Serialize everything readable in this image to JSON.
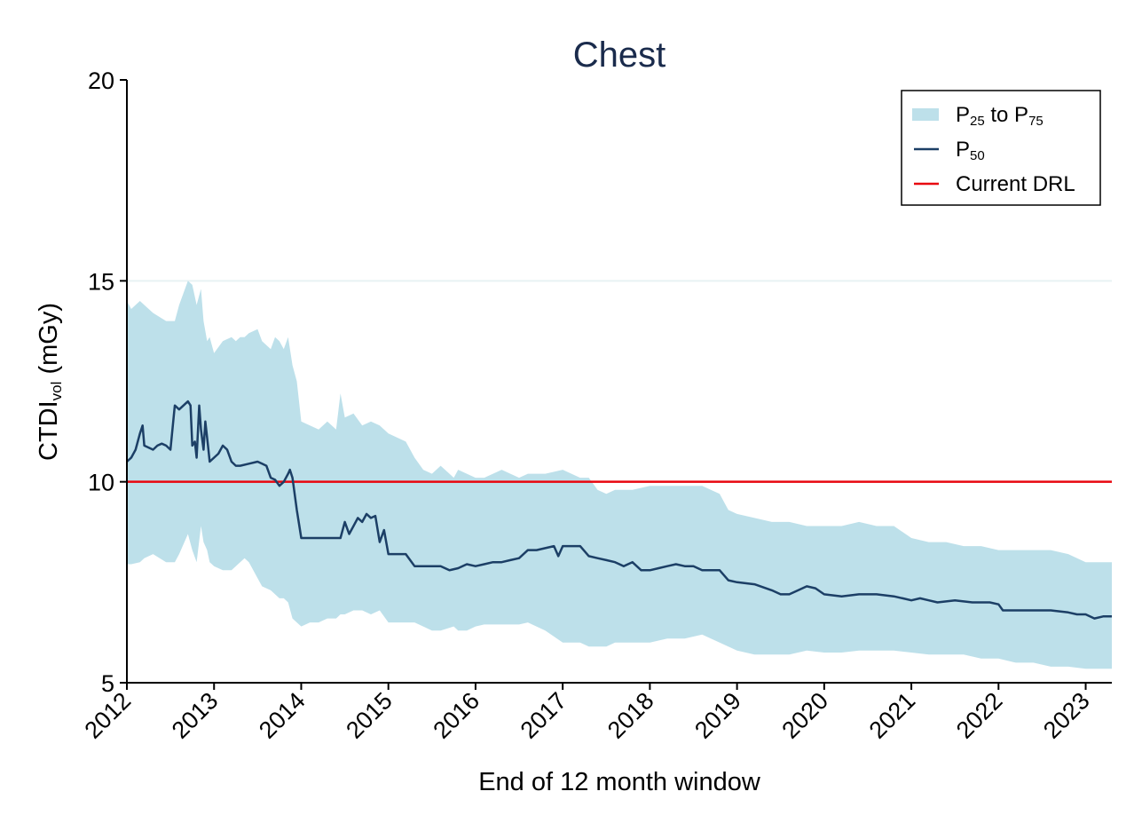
{
  "chart_data": {
    "type": "line",
    "title": "Chest",
    "xlabel": "End of 12 month window",
    "ylabel": {
      "main": "CTDI",
      "sub": "vol",
      "unit": " (mGy)"
    },
    "xlim": [
      2012.0,
      2023.3
    ],
    "ylim": [
      5,
      20
    ],
    "yticks": [
      5,
      10,
      15,
      20
    ],
    "xticks": [
      2012,
      2013,
      2014,
      2015,
      2016,
      2017,
      2018,
      2019,
      2020,
      2021,
      2022,
      2023
    ],
    "xtick_labels": [
      "2012",
      "2013",
      "2014",
      "2015",
      "2016",
      "2017",
      "2018",
      "2019",
      "2020",
      "2021",
      "2022",
      "2023"
    ],
    "grid": {
      "y_at": [
        15
      ]
    },
    "legend_position": "top-right",
    "legend": [
      {
        "key": "band",
        "parts": [
          [
            "P",
            ""
          ],
          [
            "25",
            "sub"
          ],
          [
            " to P",
            ""
          ],
          [
            "75",
            "sub"
          ]
        ]
      },
      {
        "key": "median",
        "parts": [
          [
            "P",
            ""
          ],
          [
            "50",
            "sub"
          ]
        ]
      },
      {
        "key": "drl",
        "parts": [
          [
            "Current DRL",
            ""
          ]
        ]
      }
    ],
    "reference_line": {
      "name": "Current DRL",
      "y": 10.0
    },
    "band": {
      "name": "P25 to P75",
      "x": [
        2012.0,
        2012.05,
        2012.15,
        2012.2,
        2012.3,
        2012.45,
        2012.55,
        2012.6,
        2012.7,
        2012.75,
        2012.8,
        2012.85,
        2012.88,
        2012.92,
        2012.95,
        2013.0,
        2013.1,
        2013.2,
        2013.25,
        2013.3,
        2013.35,
        2013.4,
        2013.5,
        2013.55,
        2013.65,
        2013.7,
        2013.75,
        2013.8,
        2013.85,
        2013.9,
        2013.95,
        2014.0,
        2014.1,
        2014.2,
        2014.3,
        2014.4,
        2014.45,
        2014.5,
        2014.6,
        2014.7,
        2014.8,
        2014.9,
        2015.0,
        2015.2,
        2015.3,
        2015.4,
        2015.5,
        2015.6,
        2015.75,
        2015.8,
        2015.9,
        2016.0,
        2016.1,
        2016.2,
        2016.3,
        2016.4,
        2016.5,
        2016.6,
        2016.8,
        2017.0,
        2017.2,
        2017.3,
        2017.4,
        2017.5,
        2017.6,
        2017.8,
        2018.0,
        2018.2,
        2018.4,
        2018.6,
        2018.8,
        2018.9,
        2019.0,
        2019.2,
        2019.4,
        2019.6,
        2019.8,
        2020.0,
        2020.2,
        2020.4,
        2020.6,
        2020.8,
        2021.0,
        2021.2,
        2021.4,
        2021.6,
        2021.8,
        2022.0,
        2022.2,
        2022.4,
        2022.6,
        2022.8,
        2023.0,
        2023.2,
        2023.3
      ],
      "upper": [
        14.5,
        14.3,
        14.5,
        14.4,
        14.2,
        14.0,
        14.0,
        14.4,
        15.0,
        14.9,
        14.4,
        14.8,
        14.0,
        13.5,
        13.6,
        13.2,
        13.5,
        13.6,
        13.5,
        13.6,
        13.6,
        13.7,
        13.8,
        13.5,
        13.3,
        13.6,
        13.5,
        13.3,
        13.6,
        12.9,
        12.5,
        11.5,
        11.4,
        11.3,
        11.5,
        11.3,
        12.2,
        11.6,
        11.7,
        11.4,
        11.5,
        11.4,
        11.2,
        11.0,
        10.6,
        10.3,
        10.2,
        10.4,
        10.1,
        10.3,
        10.2,
        10.1,
        10.1,
        10.2,
        10.3,
        10.2,
        10.1,
        10.2,
        10.2,
        10.3,
        10.1,
        10.1,
        9.8,
        9.7,
        9.8,
        9.8,
        9.9,
        9.9,
        9.9,
        9.9,
        9.7,
        9.3,
        9.2,
        9.1,
        9.0,
        9.0,
        8.9,
        8.9,
        8.9,
        9.0,
        8.9,
        8.9,
        8.6,
        8.5,
        8.5,
        8.4,
        8.4,
        8.3,
        8.3,
        8.3,
        8.3,
        8.2,
        8.0,
        8.0,
        8.0
      ],
      "lower": [
        7.95,
        7.95,
        8.0,
        8.1,
        8.2,
        8.0,
        8.0,
        8.2,
        8.7,
        8.3,
        8.0,
        8.9,
        8.5,
        8.3,
        8.0,
        7.9,
        7.8,
        7.8,
        7.9,
        8.0,
        8.1,
        8.0,
        7.6,
        7.4,
        7.3,
        7.2,
        7.1,
        7.1,
        7.0,
        6.6,
        6.5,
        6.4,
        6.5,
        6.5,
        6.6,
        6.6,
        6.7,
        6.7,
        6.8,
        6.8,
        6.7,
        6.8,
        6.5,
        6.5,
        6.5,
        6.4,
        6.3,
        6.3,
        6.4,
        6.3,
        6.3,
        6.4,
        6.45,
        6.45,
        6.45,
        6.45,
        6.45,
        6.5,
        6.3,
        6.0,
        6.0,
        5.9,
        5.9,
        5.9,
        6.0,
        6.0,
        6.0,
        6.1,
        6.1,
        6.2,
        6.0,
        5.9,
        5.8,
        5.7,
        5.7,
        5.7,
        5.8,
        5.75,
        5.75,
        5.8,
        5.8,
        5.8,
        5.75,
        5.7,
        5.7,
        5.7,
        5.6,
        5.6,
        5.5,
        5.5,
        5.4,
        5.4,
        5.35,
        5.35,
        5.35
      ]
    },
    "series": [
      {
        "name": "P50",
        "x": [
          2012.0,
          2012.05,
          2012.1,
          2012.15,
          2012.18,
          2012.2,
          2012.3,
          2012.35,
          2012.4,
          2012.45,
          2012.5,
          2012.55,
          2012.6,
          2012.7,
          2012.73,
          2012.75,
          2012.78,
          2012.8,
          2012.83,
          2012.85,
          2012.88,
          2012.9,
          2012.93,
          2012.95,
          2013.0,
          2013.05,
          2013.1,
          2013.15,
          2013.2,
          2013.25,
          2013.3,
          2013.4,
          2013.5,
          2013.55,
          2013.6,
          2013.65,
          2013.7,
          2013.75,
          2013.8,
          2013.85,
          2013.87,
          2013.9,
          2013.95,
          2014.0,
          2014.1,
          2014.2,
          2014.3,
          2014.4,
          2014.45,
          2014.5,
          2014.55,
          2014.6,
          2014.65,
          2014.7,
          2014.75,
          2014.8,
          2014.85,
          2014.9,
          2014.95,
          2015.0,
          2015.1,
          2015.2,
          2015.3,
          2015.4,
          2015.5,
          2015.6,
          2015.7,
          2015.8,
          2015.9,
          2016.0,
          2016.1,
          2016.2,
          2016.3,
          2016.4,
          2016.5,
          2016.6,
          2016.7,
          2016.8,
          2016.9,
          2016.95,
          2017.0,
          2017.1,
          2017.2,
          2017.3,
          2017.4,
          2017.5,
          2017.6,
          2017.7,
          2017.8,
          2017.9,
          2018.0,
          2018.1,
          2018.2,
          2018.3,
          2018.4,
          2018.5,
          2018.6,
          2018.7,
          2018.8,
          2018.9,
          2019.0,
          2019.2,
          2019.4,
          2019.5,
          2019.6,
          2019.7,
          2019.8,
          2019.9,
          2020.0,
          2020.2,
          2020.4,
          2020.6,
          2020.8,
          2020.9,
          2021.0,
          2021.1,
          2021.2,
          2021.3,
          2021.5,
          2021.7,
          2021.9,
          2022.0,
          2022.05,
          2022.2,
          2022.4,
          2022.6,
          2022.8,
          2022.9,
          2023.0,
          2023.1,
          2023.2,
          2023.3
        ],
        "values": [
          10.5,
          10.6,
          10.8,
          11.2,
          11.4,
          10.9,
          10.8,
          10.9,
          10.95,
          10.9,
          10.8,
          11.9,
          11.8,
          12.0,
          11.9,
          10.9,
          11.0,
          10.6,
          11.9,
          11.3,
          10.8,
          11.5,
          10.9,
          10.5,
          10.6,
          10.7,
          10.9,
          10.8,
          10.5,
          10.4,
          10.4,
          10.45,
          10.5,
          10.45,
          10.4,
          10.1,
          10.05,
          9.9,
          10.0,
          10.2,
          10.3,
          10.1,
          9.3,
          8.6,
          8.6,
          8.6,
          8.6,
          8.6,
          8.6,
          9.0,
          8.7,
          8.9,
          9.1,
          9.0,
          9.2,
          9.1,
          9.15,
          8.5,
          8.8,
          8.2,
          8.2,
          8.2,
          7.9,
          7.9,
          7.9,
          7.9,
          7.8,
          7.85,
          7.95,
          7.9,
          7.95,
          8.0,
          8.0,
          8.05,
          8.1,
          8.3,
          8.3,
          8.35,
          8.4,
          8.15,
          8.4,
          8.4,
          8.4,
          8.15,
          8.1,
          8.05,
          8.0,
          7.9,
          8.0,
          7.8,
          7.8,
          7.85,
          7.9,
          7.95,
          7.9,
          7.9,
          7.8,
          7.8,
          7.8,
          7.55,
          7.5,
          7.45,
          7.3,
          7.2,
          7.2,
          7.3,
          7.4,
          7.35,
          7.2,
          7.15,
          7.2,
          7.2,
          7.15,
          7.1,
          7.05,
          7.1,
          7.05,
          7.0,
          7.05,
          7.0,
          7.0,
          6.95,
          6.8,
          6.8,
          6.8,
          6.8,
          6.75,
          6.7,
          6.7,
          6.6,
          6.65,
          6.65
        ]
      }
    ],
    "colors": {
      "band": "#bde0ea",
      "median": "#1c3f66",
      "drl": "#e8060f",
      "grid": "#e8f2f4",
      "title": "#1a2b4c"
    }
  }
}
